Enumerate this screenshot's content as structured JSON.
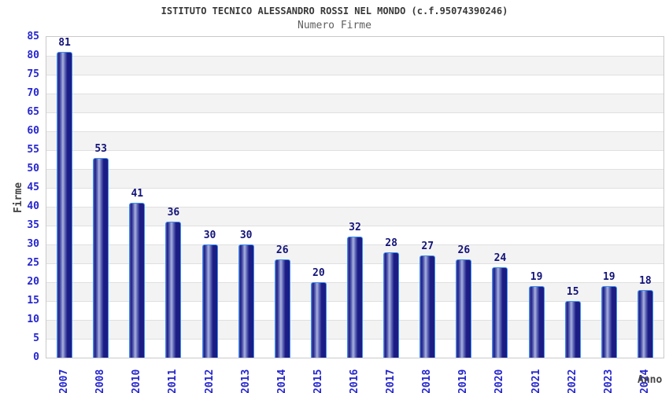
{
  "title": "ISTITUTO TECNICO ALESSANDRO ROSSI NEL MONDO (c.f.95074390246)",
  "subtitle": "Numero Firme",
  "chart_data": {
    "type": "bar",
    "categories": [
      "2007",
      "2008",
      "2010",
      "2011",
      "2012",
      "2013",
      "2014",
      "2015",
      "2016",
      "2017",
      "2018",
      "2019",
      "2020",
      "2021",
      "2022",
      "2023",
      "2024"
    ],
    "values": [
      81,
      53,
      41,
      36,
      30,
      30,
      26,
      20,
      32,
      28,
      27,
      26,
      24,
      19,
      15,
      19,
      18
    ],
    "title": "ISTITUTO TECNICO ALESSANDRO ROSSI NEL MONDO (c.f.95074390246)",
    "subtitle": "Numero Firme",
    "xlabel": "Anno",
    "ylabel": "Firme",
    "ylim": [
      0,
      85
    ],
    "ytick_step": 5,
    "grid": true,
    "legend": "none",
    "layout": {
      "bands_alternating": true,
      "x_labels_rotated_90": true,
      "value_labels_above_bars": true
    },
    "colors": {
      "bar_dark": "#1c1c85",
      "bar_mid": "#5a62b4",
      "bar_highlight": "#aab2de",
      "bar_border": "#3c8ef0",
      "value_label": "#131379",
      "tick_label": "#2626ce",
      "axis_title": "#454545",
      "title": "#383838",
      "subtitle": "#5e5e5e",
      "band_alt": "#f3f3f3",
      "gridline": "#e0e0e0",
      "plot_border": "#c9c9c9",
      "background": "#ffffff"
    }
  }
}
